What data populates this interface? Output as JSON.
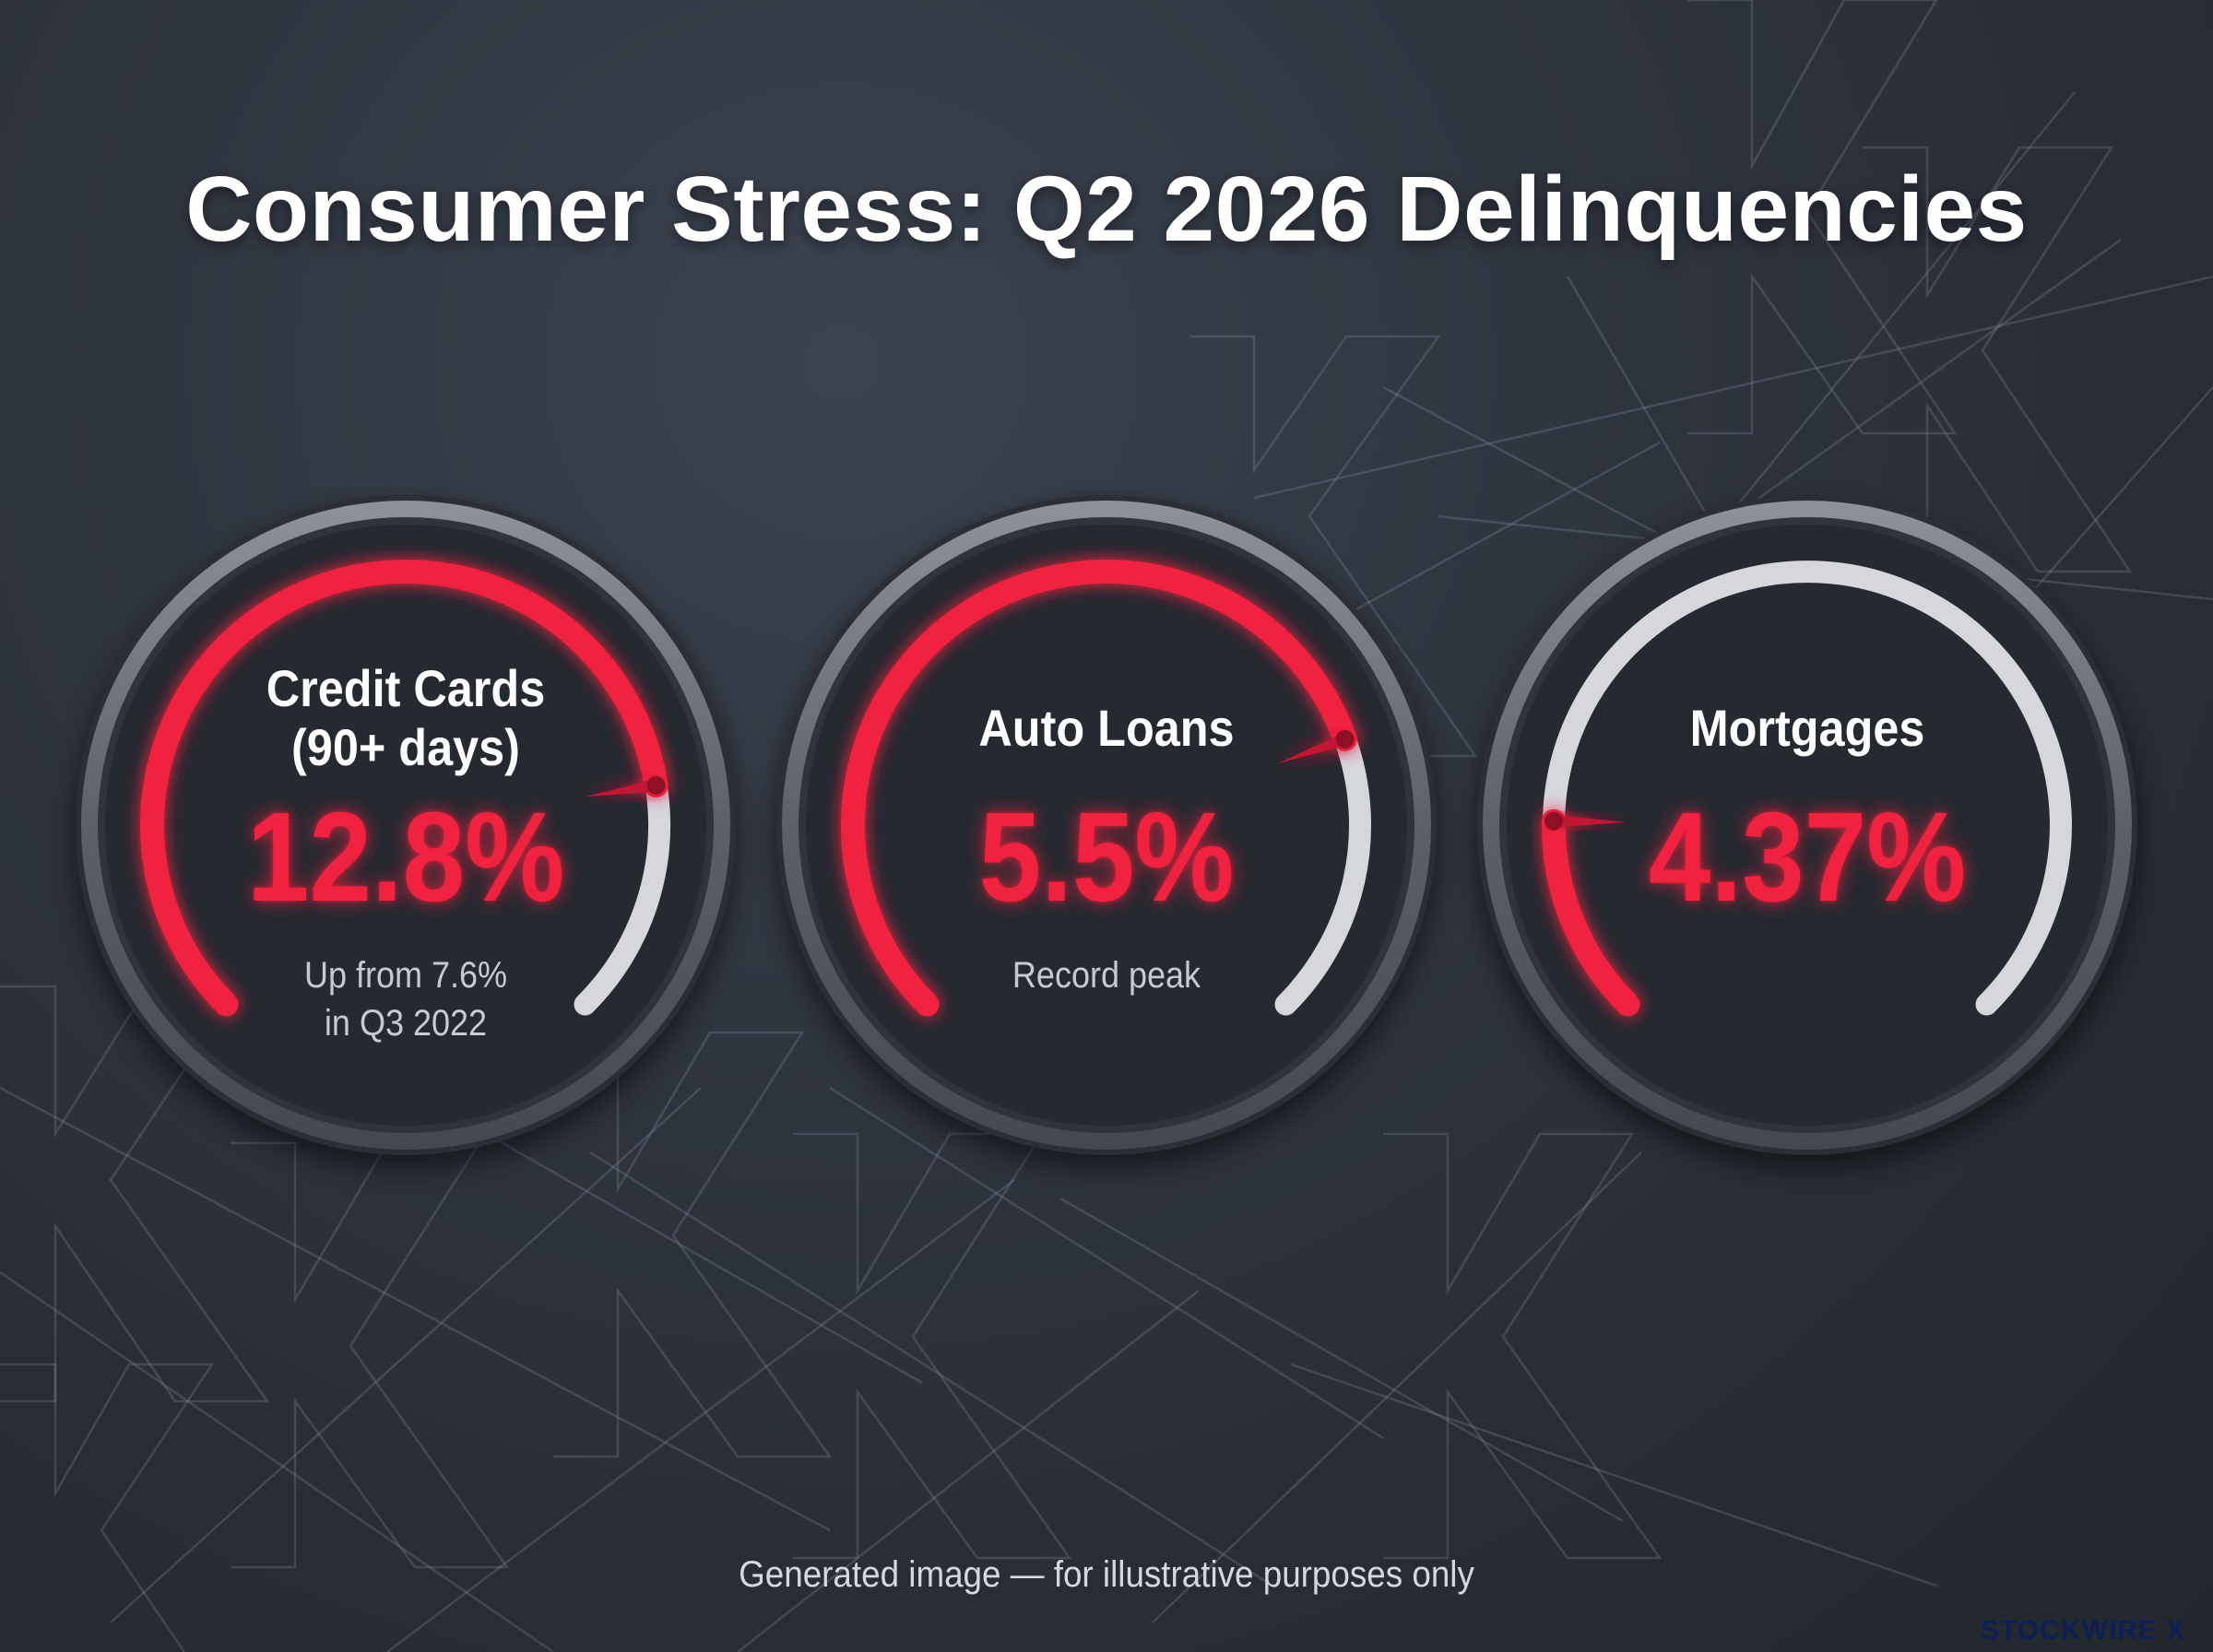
{
  "title": "Consumer Stress: Q2 2026 Delinquencies",
  "footnote": "Generated image — for illustrative purposes only",
  "brand": "STOCKWIRE X",
  "colors": {
    "accent_red": "#f0223f",
    "track_light": "#d5d7dd",
    "background": "#2c313a"
  },
  "chart_data": {
    "type": "gauge",
    "gauges": [
      {
        "label_lines": [
          "Credit Cards",
          "(90+ days)"
        ],
        "value_text": "12.8%",
        "value": 12.8,
        "needle_fraction": 0.8,
        "note_lines": [
          "Up from 7.6%",
          "in Q3 2022"
        ]
      },
      {
        "label_lines": [
          "Auto Loans"
        ],
        "value_text": "5.5%",
        "value": 5.5,
        "needle_fraction": 0.76,
        "note_lines": [
          "Record peak"
        ]
      },
      {
        "label_lines": [
          "Mortgages"
        ],
        "value_text": "4.37%",
        "value": 4.37,
        "needle_fraction": 0.17,
        "note_lines": []
      }
    ]
  }
}
